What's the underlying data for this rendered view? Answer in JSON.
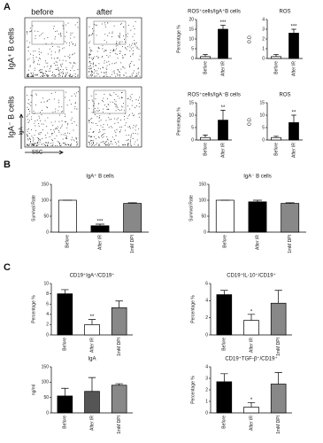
{
  "panel_labels": [
    "A",
    "B",
    "C"
  ],
  "flow": {
    "columns": [
      "before",
      "after"
    ],
    "rows": [
      "IgA⁺ B cells",
      "IgA⁻ B cells"
    ],
    "x_axis_label": "SSC",
    "y_axis_label": "IgA"
  },
  "chart_data": [
    {
      "type": "bar",
      "title": "ROS⁺cells/IgA⁺B cells",
      "ylabel": "Percentage %",
      "categories": [
        "Before",
        "After IR"
      ],
      "values": [
        1,
        15
      ],
      "errors": [
        1,
        2
      ],
      "colors": [
        "#ffffff",
        "#000000"
      ],
      "significance": [
        null,
        "***"
      ],
      "ylim": [
        0,
        20
      ],
      "yticks": [
        0,
        5,
        10,
        15,
        20
      ]
    },
    {
      "type": "bar",
      "title": "ROS",
      "ylabel": "O.D.",
      "categories": [
        "Before",
        "After IR"
      ],
      "values": [
        0.2,
        2.6
      ],
      "errors": [
        0.2,
        0.4
      ],
      "colors": [
        "#ffffff",
        "#000000"
      ],
      "significance": [
        null,
        "***"
      ],
      "ylim": [
        0,
        4
      ],
      "yticks": [
        0,
        1,
        2,
        3,
        4
      ]
    },
    {
      "type": "bar",
      "title": "ROS⁺cells/IgA⁻B cells",
      "ylabel": "Percentage %",
      "categories": [
        "Before",
        "After IR"
      ],
      "values": [
        1,
        8
      ],
      "errors": [
        1,
        4
      ],
      "colors": [
        "#ffffff",
        "#000000"
      ],
      "significance": [
        null,
        "**"
      ],
      "ylim": [
        0,
        15
      ],
      "yticks": [
        0,
        5,
        10,
        15
      ]
    },
    {
      "type": "bar",
      "title": "ROS",
      "ylabel": "O.D.",
      "categories": [
        "Before",
        "After IR"
      ],
      "values": [
        1,
        7
      ],
      "errors": [
        0.5,
        3
      ],
      "colors": [
        "#ffffff",
        "#000000"
      ],
      "significance": [
        null,
        "**"
      ],
      "ylim": [
        0,
        15
      ],
      "yticks": [
        0,
        5,
        10,
        15
      ]
    },
    {
      "type": "bar",
      "title": "IgA⁺ B cells",
      "ylabel": "Survival Rate",
      "categories": [
        "Before",
        "After IR",
        "1mM DPI"
      ],
      "values": [
        100,
        20,
        90
      ],
      "errors": [
        0,
        5,
        2
      ],
      "colors": [
        "#ffffff",
        "#000000",
        "#888888"
      ],
      "significance": [
        null,
        "***",
        null
      ],
      "ylim": [
        0,
        150
      ],
      "yticks": [
        0,
        50,
        100,
        150
      ]
    },
    {
      "type": "bar",
      "title": "IgA⁻ B cells",
      "ylabel": "Survival Rate",
      "categories": [
        "Before",
        "After IR",
        "1mM DPI"
      ],
      "values": [
        100,
        95,
        90
      ],
      "errors": [
        0,
        5,
        2
      ],
      "colors": [
        "#ffffff",
        "#000000",
        "#888888"
      ],
      "significance": [
        null,
        null,
        null
      ],
      "ylim": [
        0,
        150
      ],
      "yticks": [
        0,
        50,
        100,
        150
      ]
    },
    {
      "type": "bar",
      "title": "CD19⁺IgA⁺/CD19⁺",
      "ylabel": "Percentage %",
      "categories": [
        "Before",
        "After IR",
        "1mM DPI"
      ],
      "values": [
        8,
        2,
        5.3
      ],
      "errors": [
        0.8,
        1,
        1.3
      ],
      "colors": [
        "#000000",
        "#ffffff",
        "#888888"
      ],
      "significance": [
        null,
        "**",
        null
      ],
      "ylim": [
        0,
        10
      ],
      "yticks": [
        0,
        2,
        4,
        6,
        8,
        10
      ]
    },
    {
      "type": "bar",
      "title": "CD19⁺IL-10⁺/CD19⁺",
      "ylabel": "Percentage %",
      "categories": [
        "Before",
        "After IR",
        "1mM DPI"
      ],
      "values": [
        4.7,
        1.7,
        3.7
      ],
      "errors": [
        0.5,
        0.7,
        1.5
      ],
      "colors": [
        "#000000",
        "#ffffff",
        "#888888"
      ],
      "significance": [
        null,
        "*",
        null
      ],
      "ylim": [
        0,
        6
      ],
      "yticks": [
        0,
        2,
        4,
        6
      ]
    },
    {
      "type": "bar",
      "title": "IgA",
      "ylabel": "ng/ml",
      "categories": [
        "Before",
        "After IR",
        "1mM DPI"
      ],
      "values": [
        55,
        70,
        90
      ],
      "errors": [
        25,
        45,
        5
      ],
      "colors": [
        "#000000",
        "#555555",
        "#888888"
      ],
      "significance": [
        null,
        null,
        null
      ],
      "ylim": [
        0,
        150
      ],
      "yticks": [
        0,
        50,
        100,
        150
      ]
    },
    {
      "type": "bar",
      "title": "CD19⁺TGF-β⁺/CD19⁺",
      "ylabel": "Percentage %",
      "categories": [
        "Before",
        "After IR",
        "1mM DPI"
      ],
      "values": [
        2.7,
        0.5,
        2.5
      ],
      "errors": [
        0.7,
        0.4,
        1
      ],
      "colors": [
        "#000000",
        "#ffffff",
        "#888888"
      ],
      "significance": [
        null,
        "*",
        null
      ],
      "ylim": [
        0,
        4
      ],
      "yticks": [
        0,
        1,
        2,
        3,
        4
      ]
    }
  ]
}
